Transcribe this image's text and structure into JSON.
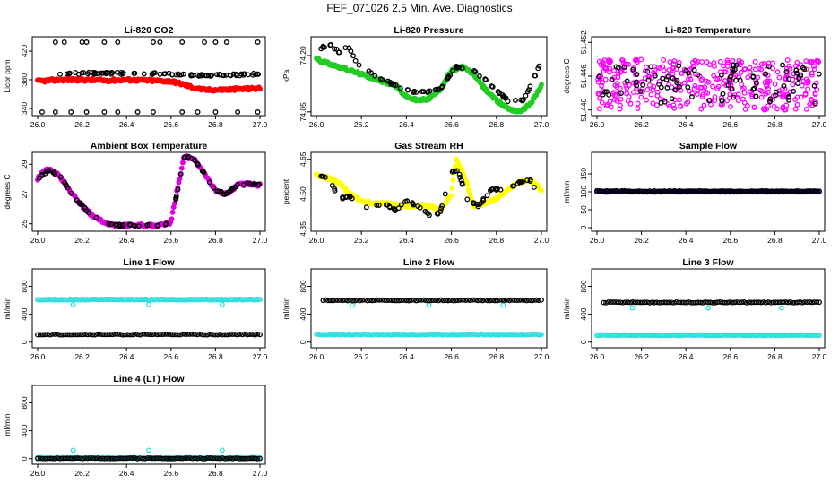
{
  "page": {
    "title": "FEF_071026  2.5 Min. Ave. Diagnostics"
  },
  "chart_data": [
    {
      "type": "scatter",
      "title": "Li-820 CO2",
      "ylabel": "Licor ppm",
      "xlim": [
        26.0,
        27.0
      ],
      "ylim": [
        330,
        440
      ],
      "x_ticks": [
        "26.0",
        "26.2",
        "26.4",
        "26.6",
        "26.8",
        "27.0"
      ],
      "y_ticks": [
        "340",
        "380",
        "420"
      ],
      "series": [
        {
          "name": "dense",
          "color": "#ff0000",
          "x": [
            26.0,
            26.1,
            26.2,
            26.3,
            26.4,
            26.5,
            26.6,
            26.65,
            26.7,
            26.75,
            26.8,
            26.9,
            27.0
          ],
          "y": [
            378,
            380,
            380,
            379,
            380,
            379,
            378,
            374,
            369,
            366,
            366,
            367,
            368
          ]
        },
        {
          "name": "sparse",
          "color": "#000000",
          "x": [
            26.08,
            26.15,
            26.3,
            26.45,
            26.6,
            26.75,
            26.9,
            27.0
          ],
          "y": [
            388,
            389,
            389,
            389,
            388,
            386,
            387,
            388
          ],
          "outliers_high": [
            26.08,
            26.12,
            26.2,
            26.22,
            26.3,
            26.36,
            26.52,
            26.55,
            26.65,
            26.75,
            26.8,
            26.85,
            26.99
          ],
          "outliers_low": [
            26.02,
            26.08,
            26.15,
            26.22,
            26.3,
            26.36,
            26.45,
            26.52,
            26.65,
            26.72,
            26.8,
            26.9,
            26.99
          ]
        }
      ]
    },
    {
      "type": "scatter",
      "title": "Li-820 Pressure",
      "ylabel": "kPa",
      "xlim": [
        26.0,
        27.0
      ],
      "ylim": [
        74.04,
        74.25
      ],
      "x_ticks": [
        "26.0",
        "26.2",
        "26.4",
        "26.6",
        "26.8",
        "27.0"
      ],
      "y_ticks": [
        "74.05",
        "74.20"
      ],
      "series": [
        {
          "name": "dense",
          "color": "#22cc22",
          "x": [
            26.0,
            26.05,
            26.1,
            26.15,
            26.2,
            26.25,
            26.3,
            26.35,
            26.4,
            26.45,
            26.5,
            26.55,
            26.6,
            26.65,
            26.7,
            26.75,
            26.8,
            26.85,
            26.9,
            26.95,
            27.0
          ],
          "y": [
            74.19,
            74.18,
            74.17,
            74.16,
            74.15,
            74.14,
            74.13,
            74.12,
            74.09,
            74.08,
            74.085,
            74.11,
            74.16,
            74.17,
            74.15,
            74.11,
            74.08,
            74.06,
            74.05,
            74.07,
            74.12
          ]
        },
        {
          "name": "sparse",
          "color": "#000000",
          "x": [
            26.02,
            26.06,
            26.1,
            26.14,
            26.18,
            26.25,
            26.35,
            26.45,
            26.55,
            26.62,
            26.7,
            26.78,
            26.85,
            26.92,
            26.99
          ],
          "y": [
            74.22,
            74.23,
            74.21,
            74.225,
            74.18,
            74.15,
            74.12,
            74.1,
            74.11,
            74.17,
            74.16,
            74.12,
            74.08,
            74.08,
            74.17
          ]
        }
      ]
    },
    {
      "type": "scatter",
      "title": "Li-820 Temperature",
      "ylabel": "degrees C",
      "xlim": [
        26.0,
        27.0
      ],
      "ylim": [
        51.439,
        51.453
      ],
      "x_ticks": [
        "26.0",
        "26.2",
        "26.4",
        "26.6",
        "26.8",
        "27.0"
      ],
      "y_ticks": [
        "51.440",
        "51.446",
        "51.452"
      ],
      "series": [
        {
          "name": "dense",
          "color": "#ff00ff",
          "x_range": [
            26.0,
            27.0
          ],
          "y_band": [
            51.44,
            51.449
          ]
        },
        {
          "name": "sparse",
          "color": "#000000",
          "x_range": [
            26.0,
            27.0
          ],
          "y_band": [
            51.441,
            51.448
          ]
        }
      ]
    },
    {
      "type": "scatter",
      "title": "Ambient Box Temperature",
      "ylabel": "degrees C",
      "xlim": [
        26.0,
        27.0
      ],
      "ylim": [
        24.5,
        29.8
      ],
      "x_ticks": [
        "26.0",
        "26.2",
        "26.4",
        "26.6",
        "26.8",
        "27.0"
      ],
      "y_ticks": [
        "25",
        "27",
        "29"
      ],
      "series": [
        {
          "name": "dense",
          "color": "#dd00dd",
          "x": [
            26.0,
            26.03,
            26.06,
            26.1,
            26.15,
            26.2,
            26.25,
            26.3,
            26.35,
            26.4,
            26.45,
            26.5,
            26.55,
            26.6,
            26.63,
            26.66,
            26.7,
            26.75,
            26.8,
            26.85,
            26.9,
            26.95,
            27.0
          ],
          "y": [
            28.0,
            28.6,
            28.6,
            28.2,
            27.1,
            26.2,
            25.5,
            25.1,
            24.9,
            24.9,
            24.9,
            24.9,
            24.9,
            25.1,
            27.5,
            29.5,
            29.4,
            28.4,
            27.2,
            27.0,
            27.6,
            27.7,
            27.6
          ]
        },
        {
          "name": "sparse",
          "color": "#000000",
          "x": [
            26.0,
            26.05,
            26.1,
            26.15,
            26.2,
            26.25,
            26.3,
            26.35,
            26.4,
            26.45,
            26.5,
            26.55,
            26.6,
            26.66,
            26.7,
            26.75,
            26.8,
            26.85,
            26.9,
            26.95,
            27.0
          ],
          "y": [
            28.0,
            28.6,
            28.2,
            27.1,
            26.2,
            25.5,
            25.1,
            24.9,
            24.9,
            24.9,
            24.9,
            24.9,
            25.1,
            29.5,
            29.4,
            28.4,
            27.2,
            27.0,
            27.6,
            27.7,
            27.6
          ]
        }
      ]
    },
    {
      "type": "scatter",
      "title": "Gas Stream RH",
      "ylabel": "percent",
      "xlim": [
        26.0,
        27.0
      ],
      "ylim": [
        4.34,
        4.68
      ],
      "x_ticks": [
        "26.0",
        "26.2",
        "26.4",
        "26.6",
        "26.8",
        "27.0"
      ],
      "y_ticks": [
        "4.35",
        "4.50",
        "4.65"
      ],
      "series": [
        {
          "name": "dense",
          "color": "#ffff00",
          "x": [
            26.0,
            26.05,
            26.1,
            26.15,
            26.2,
            26.25,
            26.3,
            26.4,
            26.5,
            26.55,
            26.6,
            26.62,
            26.65,
            26.7,
            26.75,
            26.8,
            26.85,
            26.9,
            26.95,
            27.0
          ],
          "y": [
            4.58,
            4.57,
            4.55,
            4.5,
            4.47,
            4.46,
            4.46,
            4.45,
            4.45,
            4.43,
            4.5,
            4.65,
            4.6,
            4.45,
            4.46,
            4.48,
            4.52,
            4.55,
            4.56,
            4.52
          ]
        },
        {
          "name": "sparse",
          "color": "#000000",
          "x": [
            26.02,
            26.06,
            26.1,
            26.15,
            26.2,
            26.25,
            26.3,
            26.35,
            26.4,
            26.45,
            26.5,
            26.55,
            26.6,
            26.63,
            26.67,
            26.72,
            26.78,
            26.84,
            26.9,
            26.95,
            26.99
          ],
          "y": [
            4.58,
            4.56,
            4.48,
            4.49,
            4.44,
            4.45,
            4.46,
            4.43,
            4.47,
            4.45,
            4.41,
            4.42,
            4.6,
            4.6,
            4.48,
            4.45,
            4.52,
            4.52,
            4.55,
            4.56,
            4.5
          ]
        }
      ]
    },
    {
      "type": "scatter",
      "title": "Sample Flow",
      "ylabel": "ml/min",
      "xlim": [
        26.0,
        27.0
      ],
      "ylim": [
        -10,
        210
      ],
      "x_ticks": [
        "26.0",
        "26.2",
        "26.4",
        "26.6",
        "26.8",
        "27.0"
      ],
      "y_ticks": [
        "0",
        "50",
        "100",
        "150"
      ],
      "series": [
        {
          "name": "dense",
          "color": "#0000cc",
          "x_range": [
            26.0,
            27.0
          ],
          "y_level": 100
        },
        {
          "name": "sparse",
          "color": "#000000",
          "x_range": [
            26.0,
            27.0
          ],
          "y_level": 102
        }
      ]
    },
    {
      "type": "scatter",
      "title": "Line 1 Flow",
      "ylabel": "ml/min",
      "xlim": [
        26.0,
        27.0
      ],
      "ylim": [
        -80,
        1050
      ],
      "x_ticks": [
        "26.0",
        "26.2",
        "26.4",
        "26.6",
        "26.8",
        "27.0"
      ],
      "y_ticks": [
        "0",
        "400",
        "800"
      ],
      "series": [
        {
          "name": "cyan",
          "color": "#33dddd",
          "x_range": [
            26.0,
            27.0
          ],
          "y_level": 610,
          "dips_x": [
            26.16,
            26.5,
            26.83
          ],
          "dips_y": 540
        },
        {
          "name": "black",
          "color": "#000000",
          "x_range": [
            26.0,
            27.0
          ],
          "y_level": 110
        }
      ]
    },
    {
      "type": "scatter",
      "title": "Line 2 Flow",
      "ylabel": "ml/min",
      "xlim": [
        26.0,
        27.0
      ],
      "ylim": [
        -80,
        1050
      ],
      "x_ticks": [
        "26.0",
        "26.2",
        "26.4",
        "26.6",
        "26.8",
        "27.0"
      ],
      "y_ticks": [
        "0",
        "400",
        "800"
      ],
      "series": [
        {
          "name": "cyan",
          "color": "#33dddd",
          "x_range": [
            26.0,
            27.0
          ],
          "y_level": 110,
          "dips_x": [
            26.16,
            26.5,
            26.83
          ],
          "dips_y": 530
        },
        {
          "name": "black",
          "color": "#000000",
          "x_range": [
            26.03,
            27.0
          ],
          "y_level": 600
        }
      ]
    },
    {
      "type": "scatter",
      "title": "Line 3 Flow",
      "ylabel": "ml/min",
      "xlim": [
        26.0,
        27.0
      ],
      "ylim": [
        -80,
        1050
      ],
      "x_ticks": [
        "26.0",
        "26.2",
        "26.4",
        "26.6",
        "26.8",
        "27.0"
      ],
      "y_ticks": [
        "0",
        "400",
        "800"
      ],
      "series": [
        {
          "name": "cyan",
          "color": "#33dddd",
          "x_range": [
            26.0,
            27.0
          ],
          "y_level": 100,
          "dips_x": [
            26.16,
            26.5,
            26.83
          ],
          "dips_y": 490
        },
        {
          "name": "black",
          "color": "#000000",
          "x_range": [
            26.03,
            27.0
          ],
          "y_level": 570
        }
      ]
    },
    {
      "type": "scatter",
      "title": "Line 4 (LT) Flow",
      "ylabel": "ml/min",
      "xlim": [
        26.0,
        27.0
      ],
      "ylim": [
        -80,
        1050
      ],
      "x_ticks": [
        "26.0",
        "26.2",
        "26.4",
        "26.6",
        "26.8",
        "27.0"
      ],
      "y_ticks": [
        "0",
        "400",
        "800"
      ],
      "series": [
        {
          "name": "cyan",
          "color": "#33dddd",
          "x_range": [
            26.0,
            27.0
          ],
          "y_level": 10,
          "dips_x": [
            26.16,
            26.5,
            26.83
          ],
          "dips_y": 120
        },
        {
          "name": "black",
          "color": "#000000",
          "x_range": [
            26.0,
            27.0
          ],
          "y_level": 5
        }
      ]
    }
  ]
}
